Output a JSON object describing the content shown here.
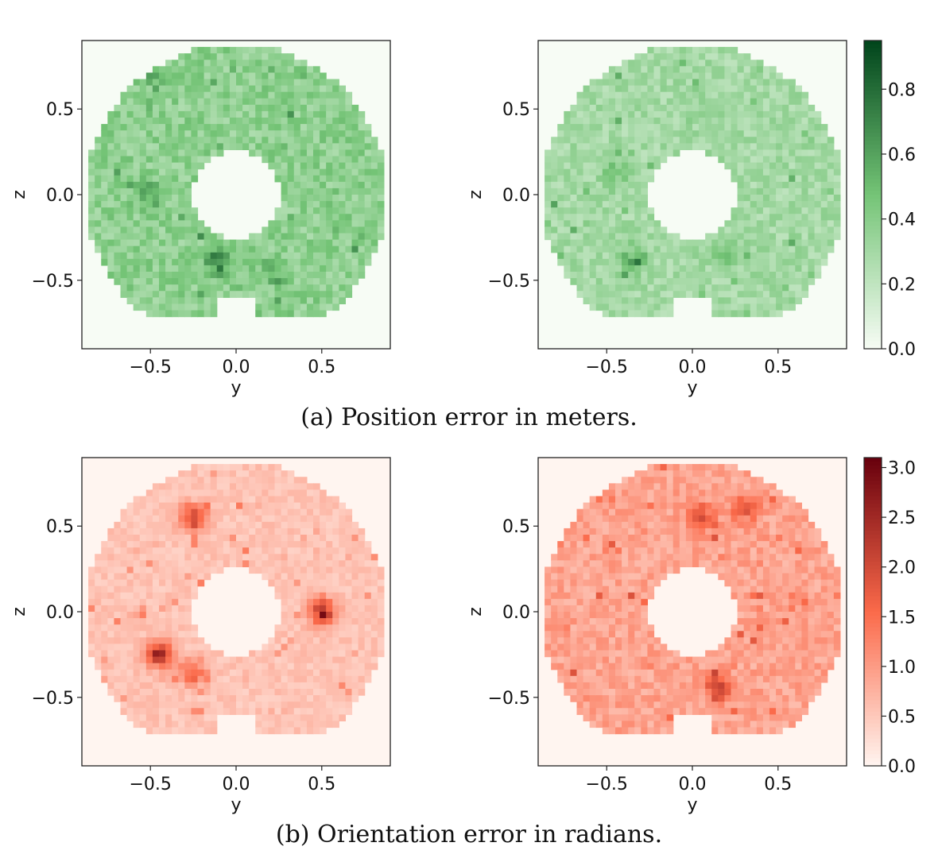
{
  "chart_data": [
    {
      "type": "heatmap",
      "panel": "a-left",
      "xlabel": "y",
      "ylabel": "z",
      "xlim": [
        -0.9,
        0.9
      ],
      "ylim": [
        -0.9,
        0.9
      ],
      "xticks": [
        "−0.5",
        "0.0",
        "0.5"
      ],
      "yticks": [
        "0.5",
        "0.0",
        "−0.5"
      ],
      "shape": "annulus",
      "outer_radius": 0.88,
      "inner_radius": 0.26,
      "grid_cells": 48,
      "colormap": "Greens",
      "colors": {
        "low": "#f7fcf5",
        "mid": "#74c476",
        "high": "#00441b"
      },
      "vmin": 0.0,
      "vmax": 0.95,
      "typical_value": 0.38,
      "hotspots": [
        {
          "y": -0.1,
          "z": -0.38,
          "value": 0.85
        },
        {
          "y": -0.5,
          "z": 0.72,
          "value": 0.6
        },
        {
          "y": -0.5,
          "z": 0.0,
          "value": 0.65
        },
        {
          "y": 0.22,
          "z": -0.45,
          "value": 0.6
        }
      ]
    },
    {
      "type": "heatmap",
      "panel": "a-right",
      "xlabel": "y",
      "ylabel": "z",
      "xlim": [
        -0.9,
        0.9
      ],
      "ylim": [
        -0.9,
        0.9
      ],
      "xticks": [
        "−0.5",
        "0.0",
        "0.5"
      ],
      "yticks": [
        "0.5",
        "0.0",
        "−0.5"
      ],
      "shape": "annulus",
      "outer_radius": 0.88,
      "inner_radius": 0.26,
      "grid_cells": 48,
      "colormap": "Greens",
      "colors": {
        "low": "#f7fcf5",
        "mid": "#74c476",
        "high": "#00441b"
      },
      "vmin": 0.0,
      "vmax": 0.95,
      "typical_value": 0.3,
      "hotspots": [
        {
          "y": -0.35,
          "z": -0.38,
          "value": 0.6
        },
        {
          "y": -0.45,
          "z": 0.12,
          "value": 0.5
        },
        {
          "y": 0.2,
          "z": -0.35,
          "value": 0.5
        }
      ]
    },
    {
      "type": "heatmap",
      "panel": "b-left",
      "xlabel": "y",
      "ylabel": "z",
      "xlim": [
        -0.9,
        0.9
      ],
      "ylim": [
        -0.9,
        0.9
      ],
      "xticks": [
        "−0.5",
        "0.0",
        "0.5"
      ],
      "yticks": [
        "0.5",
        "0.0",
        "−0.5"
      ],
      "shape": "annulus",
      "outer_radius": 0.88,
      "inner_radius": 0.26,
      "grid_cells": 48,
      "colormap": "Reds",
      "colors": {
        "low": "#fff5f0",
        "mid": "#fb6a4a",
        "high": "#67000d"
      },
      "vmin": 0.0,
      "vmax": 3.1,
      "typical_value": 0.55,
      "hotspots": [
        {
          "y": 0.5,
          "z": 0.0,
          "value": 2.8
        },
        {
          "y": -0.45,
          "z": -0.25,
          "value": 2.7
        },
        {
          "y": -0.25,
          "z": 0.55,
          "value": 2.5
        },
        {
          "y": -0.25,
          "z": -0.35,
          "value": 2.0
        }
      ]
    },
    {
      "type": "heatmap",
      "panel": "b-right",
      "xlabel": "y",
      "ylabel": "z",
      "xlim": [
        -0.9,
        0.9
      ],
      "ylim": [
        -0.9,
        0.9
      ],
      "xticks": [
        "−0.5",
        "0.0",
        "0.5"
      ],
      "yticks": [
        "0.5",
        "0.0",
        "−0.5"
      ],
      "shape": "annulus",
      "outer_radius": 0.88,
      "inner_radius": 0.26,
      "grid_cells": 48,
      "colormap": "Reds",
      "colors": {
        "low": "#fff5f0",
        "mid": "#fb6a4a",
        "high": "#67000d"
      },
      "vmin": 0.0,
      "vmax": 3.1,
      "typical_value": 0.9,
      "hotspots": [
        {
          "y": 0.3,
          "z": 0.6,
          "value": 2.0
        },
        {
          "y": 0.15,
          "z": -0.45,
          "value": 2.4
        },
        {
          "y": 0.05,
          "z": 0.55,
          "value": 2.2
        }
      ]
    }
  ],
  "colorbars": [
    {
      "name": "position-colorbar",
      "colormap": "Greens",
      "min": 0.0,
      "max": 0.95,
      "tick_values": [
        0.0,
        0.2,
        0.4,
        0.6,
        0.8
      ],
      "tick_labels": [
        "0.0",
        "0.2",
        "0.4",
        "0.6",
        "0.8"
      ]
    },
    {
      "name": "orientation-colorbar",
      "colormap": "Reds",
      "min": 0.0,
      "max": 3.1,
      "tick_values": [
        0.0,
        0.5,
        1.0,
        1.5,
        2.0,
        2.5,
        3.0
      ],
      "tick_labels": [
        "0.0",
        "0.5",
        "1.0",
        "1.5",
        "2.0",
        "2.5",
        "3.0"
      ]
    }
  ],
  "captions": {
    "a": "(a) Position error in meters.",
    "b": "(b) Orientation error in radians."
  }
}
